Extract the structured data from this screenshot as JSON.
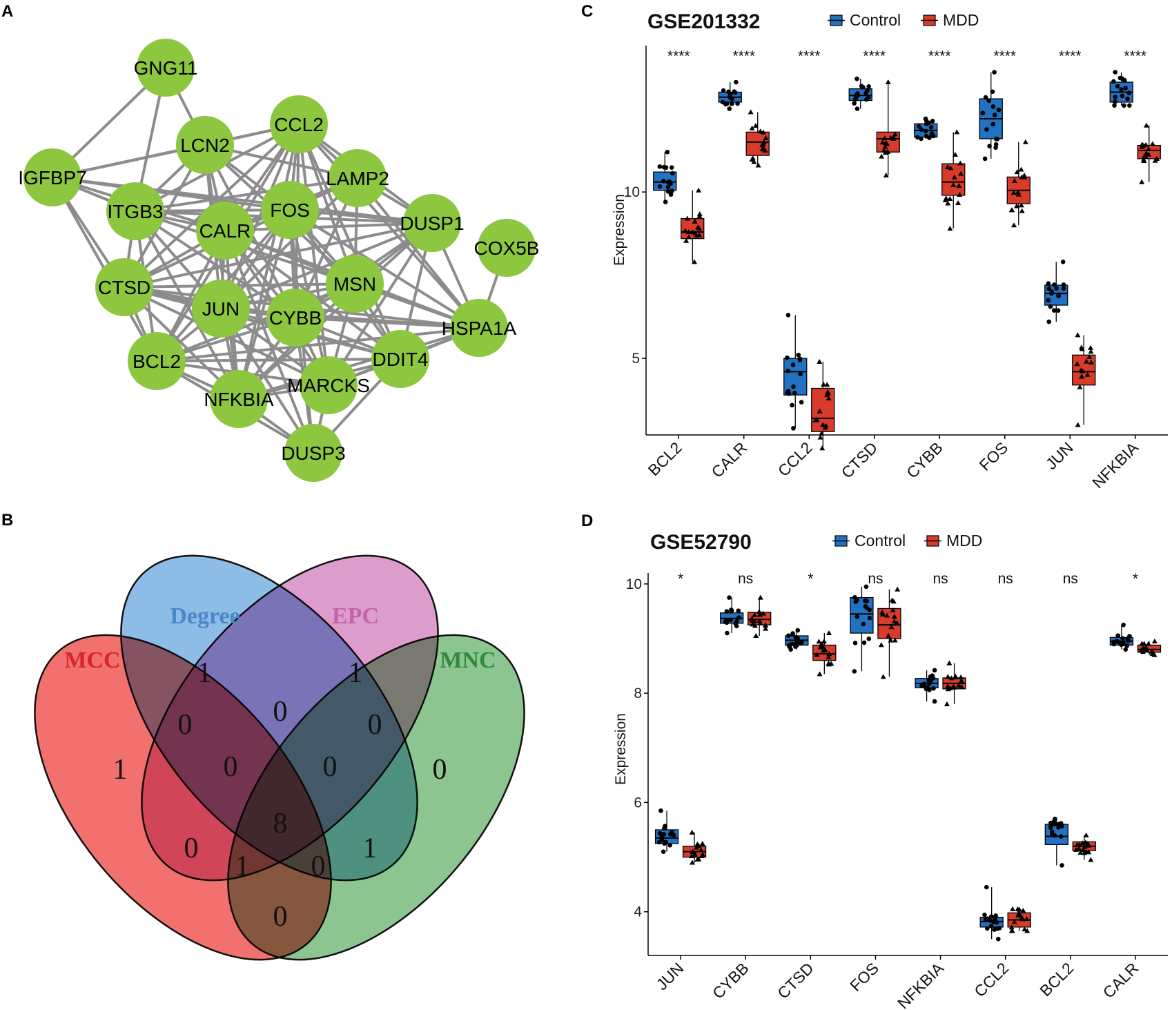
{
  "panels": {
    "a": "A",
    "b": "B",
    "c": "C",
    "d": "D"
  },
  "network": {
    "node_color": "#8dc63f",
    "edge_color": "#8c8c8c",
    "nodes": [
      "GNG11",
      "CCL2",
      "LCN2",
      "IGFBP7",
      "LAMP2",
      "ITGB3",
      "FOS",
      "CALR",
      "DUSP1",
      "COX5B",
      "MSN",
      "CTSD",
      "JUN",
      "CYBB",
      "HSPA1A",
      "BCL2",
      "DDIT4",
      "MARCKS",
      "NFKBIA",
      "DUSP3"
    ],
    "edges": [
      [
        "GNG11",
        "IGFBP7"
      ],
      [
        "GNG11",
        "ITGB3"
      ],
      [
        "GNG11",
        "LCN2"
      ],
      [
        "COX5B",
        "HSPA1A"
      ],
      [
        "IGFBP7",
        "CCL2"
      ],
      [
        "IGFBP7",
        "LCN2"
      ],
      [
        "IGFBP7",
        "ITGB3"
      ],
      [
        "IGFBP7",
        "FOS"
      ],
      [
        "IGFBP7",
        "CTSD"
      ],
      [
        "IGFBP7",
        "CALR"
      ],
      [
        "IGFBP7",
        "DUSP1"
      ],
      [
        "IGFBP7",
        "BCL2"
      ],
      [
        "CCL2",
        "LCN2"
      ],
      [
        "CCL2",
        "LAMP2"
      ],
      [
        "CCL2",
        "ITGB3"
      ],
      [
        "CCL2",
        "FOS"
      ],
      [
        "CCL2",
        "CALR"
      ],
      [
        "CCL2",
        "DUSP1"
      ],
      [
        "CCL2",
        "MSN"
      ],
      [
        "CCL2",
        "CTSD"
      ],
      [
        "CCL2",
        "JUN"
      ],
      [
        "CCL2",
        "CYBB"
      ],
      [
        "CCL2",
        "BCL2"
      ],
      [
        "CCL2",
        "DDIT4"
      ],
      [
        "CCL2",
        "MARCKS"
      ],
      [
        "CCL2",
        "NFKBIA"
      ],
      [
        "CCL2",
        "HSPA1A"
      ],
      [
        "LCN2",
        "LAMP2"
      ],
      [
        "LCN2",
        "ITGB3"
      ],
      [
        "LCN2",
        "FOS"
      ],
      [
        "LCN2",
        "CALR"
      ],
      [
        "LCN2",
        "CTSD"
      ],
      [
        "LCN2",
        "JUN"
      ],
      [
        "LCN2",
        "CYBB"
      ],
      [
        "LCN2",
        "MSN"
      ],
      [
        "LCN2",
        "NFKBIA"
      ],
      [
        "LAMP2",
        "ITGB3"
      ],
      [
        "LAMP2",
        "FOS"
      ],
      [
        "LAMP2",
        "CALR"
      ],
      [
        "LAMP2",
        "DUSP1"
      ],
      [
        "LAMP2",
        "CTSD"
      ],
      [
        "LAMP2",
        "CYBB"
      ],
      [
        "LAMP2",
        "JUN"
      ],
      [
        "LAMP2",
        "HSPA1A"
      ],
      [
        "LAMP2",
        "MSN"
      ],
      [
        "ITGB3",
        "FOS"
      ],
      [
        "ITGB3",
        "CALR"
      ],
      [
        "ITGB3",
        "DUSP1"
      ],
      [
        "ITGB3",
        "CTSD"
      ],
      [
        "ITGB3",
        "JUN"
      ],
      [
        "ITGB3",
        "BCL2"
      ],
      [
        "ITGB3",
        "CYBB"
      ],
      [
        "ITGB3",
        "MSN"
      ],
      [
        "ITGB3",
        "NFKBIA"
      ],
      [
        "FOS",
        "CALR"
      ],
      [
        "FOS",
        "DUSP1"
      ],
      [
        "FOS",
        "MSN"
      ],
      [
        "FOS",
        "CTSD"
      ],
      [
        "FOS",
        "JUN"
      ],
      [
        "FOS",
        "CYBB"
      ],
      [
        "FOS",
        "BCL2"
      ],
      [
        "FOS",
        "DDIT4"
      ],
      [
        "FOS",
        "MARCKS"
      ],
      [
        "FOS",
        "NFKBIA"
      ],
      [
        "FOS",
        "HSPA1A"
      ],
      [
        "FOS",
        "DUSP3"
      ],
      [
        "CALR",
        "DUSP1"
      ],
      [
        "CALR",
        "MSN"
      ],
      [
        "CALR",
        "CTSD"
      ],
      [
        "CALR",
        "JUN"
      ],
      [
        "CALR",
        "CYBB"
      ],
      [
        "CALR",
        "BCL2"
      ],
      [
        "CALR",
        "HSPA1A"
      ],
      [
        "CALR",
        "DDIT4"
      ],
      [
        "CALR",
        "MARCKS"
      ],
      [
        "CALR",
        "NFKBIA"
      ],
      [
        "CALR",
        "DUSP3"
      ],
      [
        "DUSP1",
        "MSN"
      ],
      [
        "DUSP1",
        "HSPA1A"
      ],
      [
        "DUSP1",
        "CYBB"
      ],
      [
        "DUSP1",
        "JUN"
      ],
      [
        "DUSP1",
        "DDIT4"
      ],
      [
        "DUSP1",
        "MARCKS"
      ],
      [
        "DUSP1",
        "NFKBIA"
      ],
      [
        "DUSP1",
        "CTSD"
      ],
      [
        "MSN",
        "CTSD"
      ],
      [
        "MSN",
        "JUN"
      ],
      [
        "MSN",
        "CYBB"
      ],
      [
        "MSN",
        "HSPA1A"
      ],
      [
        "MSN",
        "BCL2"
      ],
      [
        "MSN",
        "DDIT4"
      ],
      [
        "MSN",
        "MARCKS"
      ],
      [
        "MSN",
        "NFKBIA"
      ],
      [
        "CTSD",
        "JUN"
      ],
      [
        "CTSD",
        "CYBB"
      ],
      [
        "CTSD",
        "BCL2"
      ],
      [
        "CTSD",
        "HSPA1A"
      ],
      [
        "CTSD",
        "DDIT4"
      ],
      [
        "CTSD",
        "MARCKS"
      ],
      [
        "CTSD",
        "NFKBIA"
      ],
      [
        "JUN",
        "CYBB"
      ],
      [
        "JUN",
        "BCL2"
      ],
      [
        "JUN",
        "HSPA1A"
      ],
      [
        "JUN",
        "DDIT4"
      ],
      [
        "JUN",
        "MARCKS"
      ],
      [
        "JUN",
        "NFKBIA"
      ],
      [
        "JUN",
        "DUSP3"
      ],
      [
        "CYBB",
        "HSPA1A"
      ],
      [
        "CYBB",
        "BCL2"
      ],
      [
        "CYBB",
        "DDIT4"
      ],
      [
        "CYBB",
        "MARCKS"
      ],
      [
        "CYBB",
        "NFKBIA"
      ],
      [
        "CYBB",
        "DUSP3"
      ],
      [
        "HSPA1A",
        "DDIT4"
      ],
      [
        "HSPA1A",
        "MARCKS"
      ],
      [
        "HSPA1A",
        "NFKBIA"
      ],
      [
        "HSPA1A",
        "BCL2"
      ],
      [
        "BCL2",
        "DDIT4"
      ],
      [
        "BCL2",
        "MARCKS"
      ],
      [
        "BCL2",
        "NFKBIA"
      ],
      [
        "BCL2",
        "DUSP3"
      ],
      [
        "DDIT4",
        "MARCKS"
      ],
      [
        "DDIT4",
        "NFKBIA"
      ],
      [
        "DDIT4",
        "DUSP3"
      ],
      [
        "MARCKS",
        "NFKBIA"
      ],
      [
        "MARCKS",
        "DUSP3"
      ],
      [
        "NFKBIA",
        "DUSP3"
      ]
    ]
  },
  "venn": {
    "sets": [
      {
        "label": "MCC",
        "color": "#d7262a",
        "fill": "#f2706e"
      },
      {
        "label": "Degree",
        "color": "#4a88c7",
        "fill": "#8dbce6"
      },
      {
        "label": "EPC",
        "color": "#c264a9",
        "fill": "#dc9ccc"
      },
      {
        "label": "MNC",
        "color": "#2f8a3c",
        "fill": "#8cc58f"
      }
    ],
    "counts": {
      "mcc_only": "1",
      "degree_only": "1",
      "epc_only": "1",
      "mnc_only": "0",
      "mcc_degree": "0",
      "degree_epc": "0",
      "epc_mnc": "0",
      "mcc_degree_epc": "0",
      "degree_epc_mnc": "0",
      "mcc_epc": "0",
      "degree_mnc": "1",
      "all_four": "8",
      "mcc_epc_mnc": "1",
      "mcc_degree_mnc": "0",
      "mcc_mnc": "0"
    }
  },
  "chart_data": [
    {
      "type": "box",
      "title": "GSE201332",
      "ylabel": "Expression",
      "xlabel": "",
      "legend": [
        "Control",
        "MDD"
      ],
      "legend_placement": "top",
      "colors": {
        "Control": "#2272c3",
        "MDD": "#d93b2b"
      },
      "ylim": [
        2.7,
        14.4
      ],
      "yticks": [
        5,
        10
      ],
      "categories": [
        "BCL2",
        "CALR",
        "CCL2",
        "CTSD",
        "CYBB",
        "FOS",
        "JUN",
        "NFKBIA"
      ],
      "significance": [
        "****",
        "****",
        "****",
        "****",
        "****",
        "****",
        "****",
        "****"
      ],
      "series": [
        {
          "name": "Control",
          "boxes": [
            {
              "min": 9.7,
              "q1": 10.05,
              "median": 10.3,
              "q3": 10.6,
              "max": 11.2
            },
            {
              "min": 12.5,
              "q1": 12.7,
              "median": 12.85,
              "q3": 13.0,
              "max": 13.3
            },
            {
              "min": 2.9,
              "q1": 3.9,
              "median": 4.6,
              "q3": 5.0,
              "max": 6.3
            },
            {
              "min": 12.5,
              "q1": 12.75,
              "median": 12.9,
              "q3": 13.1,
              "max": 13.4
            },
            {
              "min": 11.6,
              "q1": 11.65,
              "median": 11.85,
              "q3": 12.05,
              "max": 12.2
            },
            {
              "min": 11.0,
              "q1": 11.6,
              "median": 12.2,
              "q3": 12.8,
              "max": 13.6
            },
            {
              "min": 6.1,
              "q1": 6.6,
              "median": 6.95,
              "q3": 7.2,
              "max": 7.9
            },
            {
              "min": 12.6,
              "q1": 12.7,
              "median": 13.0,
              "q3": 13.3,
              "max": 13.6
            }
          ]
        },
        {
          "name": "MDD",
          "boxes": [
            {
              "min": 7.9,
              "q1": 8.6,
              "median": 8.8,
              "q3": 9.2,
              "max": 10.05
            },
            {
              "min": 10.8,
              "q1": 11.1,
              "median": 11.5,
              "q3": 11.8,
              "max": 12.4
            },
            {
              "min": 2.3,
              "q1": 2.8,
              "median": 3.2,
              "q3": 4.1,
              "max": 4.9
            },
            {
              "min": 10.5,
              "q1": 11.2,
              "median": 11.6,
              "q3": 11.8,
              "max": 13.3
            },
            {
              "min": 8.9,
              "q1": 9.9,
              "median": 10.3,
              "q3": 10.85,
              "max": 11.8
            },
            {
              "min": 9.0,
              "q1": 9.65,
              "median": 10.05,
              "q3": 10.45,
              "max": 11.5
            },
            {
              "min": 3.0,
              "q1": 4.2,
              "median": 4.6,
              "q3": 5.1,
              "max": 5.7
            },
            {
              "min": 10.3,
              "q1": 11.0,
              "median": 11.25,
              "q3": 11.4,
              "max": 12.0
            }
          ]
        }
      ]
    },
    {
      "type": "box",
      "title": "GSE52790",
      "ylabel": "Expression",
      "xlabel": "",
      "legend": [
        "Control",
        "MDD"
      ],
      "legend_placement": "top",
      "colors": {
        "Control": "#2272c3",
        "MDD": "#d93b2b"
      },
      "ylim": [
        3.2,
        10.2
      ],
      "yticks": [
        4,
        6,
        8,
        10
      ],
      "categories": [
        "JUN",
        "CYBB",
        "CTSD",
        "FOS",
        "NFKBIA",
        "CCL2",
        "BCL2",
        "CALR"
      ],
      "significance": [
        "*",
        "ns",
        "*",
        "ns",
        "ns",
        "ns",
        "ns",
        "*"
      ],
      "series": [
        {
          "name": "Control",
          "boxes": [
            {
              "min": 5.1,
              "q1": 5.25,
              "median": 5.35,
              "q3": 5.5,
              "max": 5.85
            },
            {
              "min": 9.1,
              "q1": 9.28,
              "median": 9.37,
              "q3": 9.47,
              "max": 9.75
            },
            {
              "min": 8.8,
              "q1": 8.88,
              "median": 8.97,
              "q3": 9.05,
              "max": 9.15
            },
            {
              "min": 8.4,
              "q1": 9.1,
              "median": 9.45,
              "q3": 9.75,
              "max": 9.95
            },
            {
              "min": 7.85,
              "q1": 8.1,
              "median": 8.18,
              "q3": 8.27,
              "max": 8.42
            },
            {
              "min": 3.5,
              "q1": 3.72,
              "median": 3.82,
              "q3": 3.9,
              "max": 4.45
            },
            {
              "min": 4.85,
              "q1": 5.23,
              "median": 5.38,
              "q3": 5.6,
              "max": 5.7
            },
            {
              "min": 8.8,
              "q1": 8.88,
              "median": 8.95,
              "q3": 9.02,
              "max": 9.25
            }
          ]
        },
        {
          "name": "MDD",
          "boxes": [
            {
              "min": 4.9,
              "q1": 5.0,
              "median": 5.1,
              "q3": 5.2,
              "max": 5.45
            },
            {
              "min": 9.05,
              "q1": 9.25,
              "median": 9.35,
              "q3": 9.48,
              "max": 9.75
            },
            {
              "min": 8.35,
              "q1": 8.6,
              "median": 8.72,
              "q3": 8.88,
              "max": 9.1
            },
            {
              "min": 8.3,
              "q1": 9.0,
              "median": 9.25,
              "q3": 9.55,
              "max": 9.9
            },
            {
              "min": 7.8,
              "q1": 8.08,
              "median": 8.18,
              "q3": 8.28,
              "max": 8.55
            },
            {
              "min": 3.65,
              "q1": 3.72,
              "median": 3.85,
              "q3": 3.98,
              "max": 4.05
            },
            {
              "min": 4.95,
              "q1": 5.12,
              "median": 5.2,
              "q3": 5.28,
              "max": 5.4
            },
            {
              "min": 8.7,
              "q1": 8.75,
              "median": 8.8,
              "q3": 8.88,
              "max": 8.95
            }
          ]
        }
      ]
    }
  ]
}
